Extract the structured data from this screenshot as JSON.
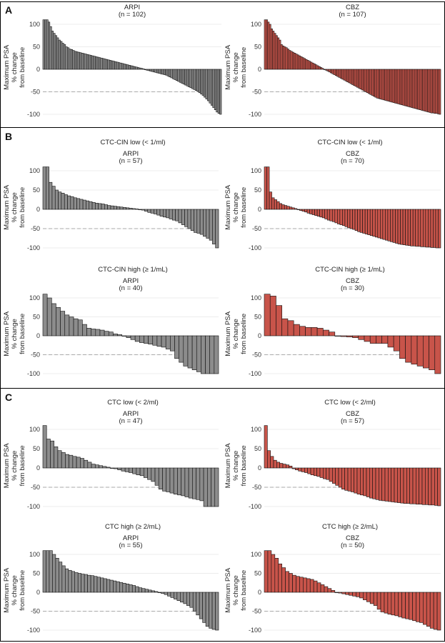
{
  "panels": [
    {
      "letter": "A"
    },
    {
      "letter": "B",
      "subtitles": [
        "CTC-CIN low (< 1/ml)",
        "CTC-CIN high (≥ 1/mL)"
      ]
    },
    {
      "letter": "C",
      "subtitles": [
        "CTC low (< 2/ml)",
        "CTC high (≥ 2/mL)"
      ]
    }
  ],
  "colors": {
    "ARPI": "#8c8c8c",
    "CBZ": "#c8544a",
    "edge": "#111111",
    "reference_line": "#aaaaaa",
    "grid": "#e6e6e6"
  },
  "shared": {
    "ylabel_lines": [
      "Maximum PSA",
      "% change",
      "from baseline"
    ],
    "yticks": [
      100,
      50,
      0,
      -50,
      -100
    ],
    "reference_line": -50
  },
  "chart_data": [
    {
      "type": "bar",
      "panel": "A",
      "title": "ARPI",
      "subtitle": "(n = 102)",
      "ylim": [
        -105,
        110
      ],
      "values": [
        110,
        110,
        110,
        105,
        95,
        85,
        80,
        75,
        70,
        65,
        62,
        58,
        55,
        50,
        48,
        45,
        44,
        42,
        40,
        39,
        38,
        37,
        36,
        35,
        34,
        33,
        32,
        31,
        30,
        29,
        28,
        27,
        26,
        25,
        24,
        23,
        22,
        21,
        20,
        19,
        18,
        17,
        16,
        15,
        14,
        13,
        12,
        11,
        10,
        9,
        8,
        7,
        6,
        5,
        4,
        3,
        2,
        1,
        -1,
        -2,
        -3,
        -4,
        -5,
        -6,
        -7,
        -8,
        -9,
        -10,
        -11,
        -12,
        -13,
        -15,
        -17,
        -19,
        -21,
        -23,
        -25,
        -27,
        -29,
        -31,
        -33,
        -35,
        -37,
        -39,
        -41,
        -43,
        -45,
        -47,
        -49,
        -52,
        -55,
        -58,
        -62,
        -66,
        -70,
        -75,
        -80,
        -85,
        -90,
        -95,
        -98,
        -100
      ]
    },
    {
      "type": "bar",
      "panel": "A",
      "title": "CBZ",
      "subtitle": "(n = 107)",
      "ylim": [
        -105,
        110
      ],
      "values": [
        110,
        110,
        105,
        100,
        90,
        85,
        80,
        75,
        70,
        65,
        55,
        52,
        50,
        48,
        45,
        42,
        40,
        38,
        36,
        34,
        32,
        30,
        28,
        26,
        24,
        22,
        20,
        18,
        16,
        14,
        12,
        10,
        8,
        6,
        4,
        2,
        0,
        -2,
        -4,
        -6,
        -8,
        -10,
        -12,
        -14,
        -16,
        -18,
        -20,
        -22,
        -24,
        -26,
        -28,
        -30,
        -32,
        -34,
        -36,
        -38,
        -40,
        -42,
        -44,
        -46,
        -48,
        -50,
        -52,
        -54,
        -56,
        -58,
        -60,
        -62,
        -64,
        -65,
        -66,
        -67,
        -68,
        -69,
        -70,
        -71,
        -72,
        -73,
        -74,
        -75,
        -76,
        -77,
        -78,
        -79,
        -80,
        -81,
        -82,
        -83,
        -84,
        -85,
        -86,
        -87,
        -88,
        -89,
        -90,
        -91,
        -92,
        -93,
        -94,
        -95,
        -96,
        -97,
        -97,
        -98,
        -98,
        -99,
        -100
      ]
    },
    {
      "type": "bar",
      "panel": "B",
      "title": "ARPI",
      "subtitle": "(n = 57)",
      "ylim": [
        -105,
        110
      ],
      "values": [
        110,
        110,
        70,
        60,
        50,
        45,
        42,
        38,
        35,
        33,
        30,
        28,
        26,
        24,
        22,
        20,
        18,
        16,
        15,
        14,
        12,
        10,
        9,
        8,
        7,
        6,
        5,
        4,
        3,
        2,
        1,
        0,
        -2,
        -5,
        -8,
        -10,
        -12,
        -15,
        -18,
        -20,
        -22,
        -25,
        -28,
        -30,
        -35,
        -40,
        -45,
        -50,
        -55,
        -60,
        -62,
        -65,
        -70,
        -75,
        -80,
        -90,
        -100
      ]
    },
    {
      "type": "bar",
      "panel": "B",
      "title": "CBZ",
      "subtitle": "(n = 70)",
      "ylim": [
        -105,
        110
      ],
      "values": [
        110,
        110,
        45,
        30,
        25,
        20,
        15,
        12,
        10,
        8,
        6,
        4,
        2,
        0,
        -3,
        -5,
        -7,
        -10,
        -12,
        -14,
        -16,
        -18,
        -20,
        -22,
        -25,
        -28,
        -30,
        -32,
        -35,
        -38,
        -40,
        -42,
        -45,
        -48,
        -50,
        -52,
        -55,
        -58,
        -60,
        -62,
        -64,
        -66,
        -68,
        -70,
        -72,
        -74,
        -76,
        -78,
        -80,
        -82,
        -84,
        -86,
        -88,
        -90,
        -91,
        -92,
        -93,
        -94,
        -95,
        -95,
        -96,
        -96,
        -97,
        -97,
        -98,
        -98,
        -99,
        -99,
        -100,
        -100
      ]
    },
    {
      "type": "bar",
      "panel": "B",
      "title": "ARPI",
      "subtitle": "(n = 40)",
      "ylim": [
        -105,
        110
      ],
      "values": [
        110,
        100,
        85,
        75,
        65,
        55,
        50,
        45,
        42,
        30,
        20,
        18,
        17,
        15,
        12,
        10,
        5,
        3,
        0,
        -5,
        -10,
        -15,
        -18,
        -20,
        -22,
        -25,
        -28,
        -30,
        -35,
        -40,
        -60,
        -70,
        -80,
        -85,
        -90,
        -95,
        -100,
        -100,
        -100,
        -100
      ]
    },
    {
      "type": "bar",
      "panel": "B",
      "title": "CBZ",
      "subtitle": "(n = 30)",
      "ylim": [
        -105,
        110
      ],
      "values": [
        110,
        105,
        80,
        45,
        40,
        30,
        25,
        22,
        22,
        20,
        15,
        10,
        0,
        -2,
        -3,
        -5,
        -10,
        -15,
        -20,
        -20,
        -20,
        -30,
        -40,
        -60,
        -70,
        -75,
        -80,
        -85,
        -90,
        -100
      ]
    },
    {
      "type": "bar",
      "panel": "C",
      "title": "ARPI",
      "subtitle": "(n = 47)",
      "ylim": [
        -105,
        110
      ],
      "values": [
        110,
        75,
        70,
        55,
        45,
        40,
        35,
        33,
        30,
        28,
        25,
        20,
        15,
        10,
        8,
        6,
        4,
        2,
        0,
        -2,
        -5,
        -8,
        -10,
        -12,
        -15,
        -18,
        -20,
        -25,
        -30,
        -35,
        -45,
        -55,
        -60,
        -62,
        -65,
        -68,
        -70,
        -72,
        -75,
        -78,
        -80,
        -82,
        -85,
        -100,
        -100,
        -100,
        -100
      ]
    },
    {
      "type": "bar",
      "panel": "C",
      "title": "CBZ",
      "subtitle": "(n = 57)",
      "ylim": [
        -105,
        110
      ],
      "values": [
        110,
        45,
        30,
        20,
        15,
        12,
        10,
        8,
        5,
        -2,
        -5,
        -8,
        -10,
        -12,
        -15,
        -18,
        -20,
        -22,
        -25,
        -28,
        -30,
        -35,
        -40,
        -45,
        -50,
        -55,
        -58,
        -60,
        -62,
        -65,
        -68,
        -70,
        -72,
        -75,
        -78,
        -80,
        -82,
        -84,
        -85,
        -86,
        -87,
        -88,
        -89,
        -90,
        -91,
        -92,
        -92,
        -93,
        -93,
        -94,
        -94,
        -95,
        -95,
        -96,
        -96,
        -97,
        -98
      ]
    },
    {
      "type": "bar",
      "panel": "C",
      "title": "ARPI",
      "subtitle": "(n = 55)",
      "ylim": [
        -105,
        110
      ],
      "values": [
        110,
        110,
        110,
        100,
        90,
        80,
        70,
        62,
        58,
        55,
        52,
        50,
        48,
        47,
        45,
        44,
        42,
        40,
        38,
        36,
        34,
        32,
        30,
        28,
        26,
        24,
        22,
        20,
        18,
        15,
        12,
        10,
        8,
        6,
        4,
        2,
        0,
        -3,
        -6,
        -10,
        -14,
        -18,
        -22,
        -26,
        -30,
        -35,
        -40,
        -50,
        -60,
        -70,
        -80,
        -90,
        -95,
        -98,
        -100
      ]
    },
    {
      "type": "bar",
      "panel": "C",
      "title": "CBZ",
      "subtitle": "(n = 50)",
      "ylim": [
        -105,
        110
      ],
      "values": [
        110,
        110,
        100,
        90,
        75,
        65,
        55,
        50,
        45,
        42,
        40,
        38,
        36,
        34,
        30,
        25,
        20,
        15,
        10,
        5,
        0,
        -2,
        -4,
        -6,
        -8,
        -10,
        -12,
        -15,
        -20,
        -25,
        -30,
        -35,
        -45,
        -52,
        -55,
        -58,
        -60,
        -62,
        -65,
        -68,
        -70,
        -72,
        -75,
        -78,
        -80,
        -85,
        -90,
        -95,
        -98,
        -100
      ]
    }
  ]
}
